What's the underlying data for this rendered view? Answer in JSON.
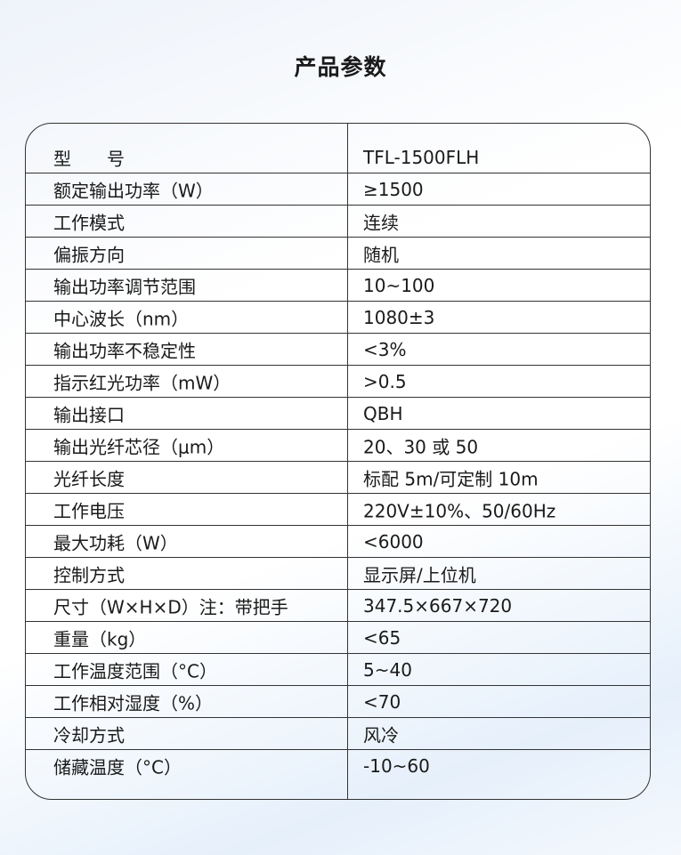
{
  "title": "产品参数",
  "rows": [
    {
      "label": "型　　号",
      "value": "TFL-1500FLH"
    },
    {
      "label": "额定输出功率（W）",
      "value": "≥1500"
    },
    {
      "label": "工作模式",
      "value": "连续"
    },
    {
      "label": "偏振方向",
      "value": "随机"
    },
    {
      "label": "输出功率调节范围",
      "value": "10~100"
    },
    {
      "label": "中心波长（nm）",
      "value": "1080±3"
    },
    {
      "label": "输出功率不稳定性",
      "value": "<3%"
    },
    {
      "label": "指示红光功率（mW）",
      "value": ">0.5"
    },
    {
      "label": "输出接口",
      "value": "QBH"
    },
    {
      "label": "输出光纤芯径（μm）",
      "value": "20、30 或 50"
    },
    {
      "label": "光纤长度",
      "value": "标配 5m/可定制 10m"
    },
    {
      "label": "工作电压",
      "value": "220V±10%、50/60Hz"
    },
    {
      "label": "最大功耗（W）",
      "value": "<6000"
    },
    {
      "label": "控制方式",
      "value": "显示屏/上位机"
    },
    {
      "label": "尺寸（W×H×D）注：带把手",
      "value": "347.5×667×720"
    },
    {
      "label": "重量（kg）",
      "value": "<65"
    },
    {
      "label": "工作温度范围（°C）",
      "value": "5~40"
    },
    {
      "label": "工作相对湿度（%）",
      "value": "<70"
    },
    {
      "label": "冷却方式",
      "value": "风冷"
    },
    {
      "label": "储藏温度（°C）",
      "value": "-10~60"
    }
  ]
}
